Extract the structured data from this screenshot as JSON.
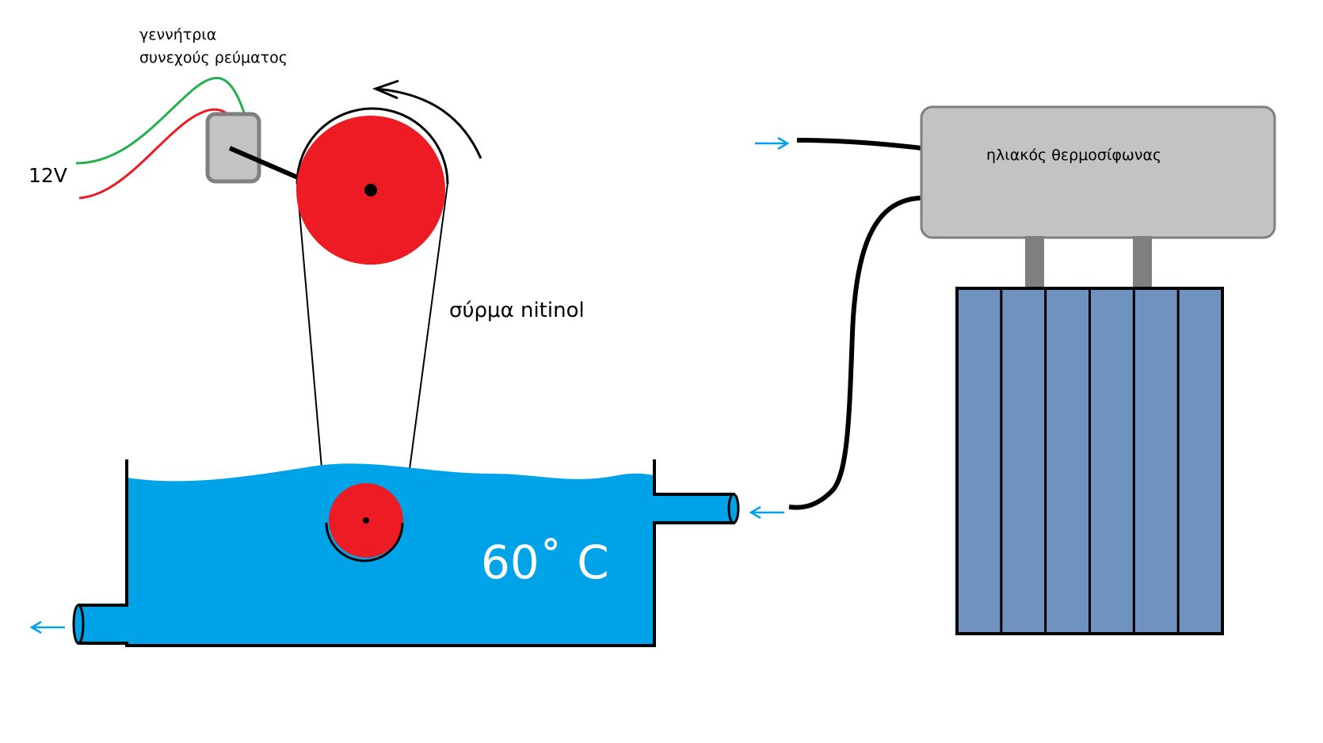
{
  "labels": {
    "generator_line1": "γεννήτρια",
    "generator_line2": "συνεχούς ρεύματος",
    "voltage": "12V",
    "wire": "σύρμα nitinol",
    "heater": "ηλιακός θερμοσίφωνας",
    "temperature": "60˚ C"
  },
  "colors": {
    "water": "#00a2e8",
    "pulley": "#ed1c24",
    "wire_green": "#22b14c",
    "wire_red": "#ed1c24",
    "generator_fill": "#c3c3c3",
    "generator_border": "#7f7f7f",
    "heater_tank": "#c3c3c3",
    "heater_support": "#7f7f7f",
    "panel": "#7092be",
    "flow_arrow": "#00a2e8"
  },
  "icons": {
    "rotation": "counterclockwise-arrow-icon",
    "flow": "small-arrow-icon"
  },
  "solar_panel": {
    "tube_count": 6
  }
}
